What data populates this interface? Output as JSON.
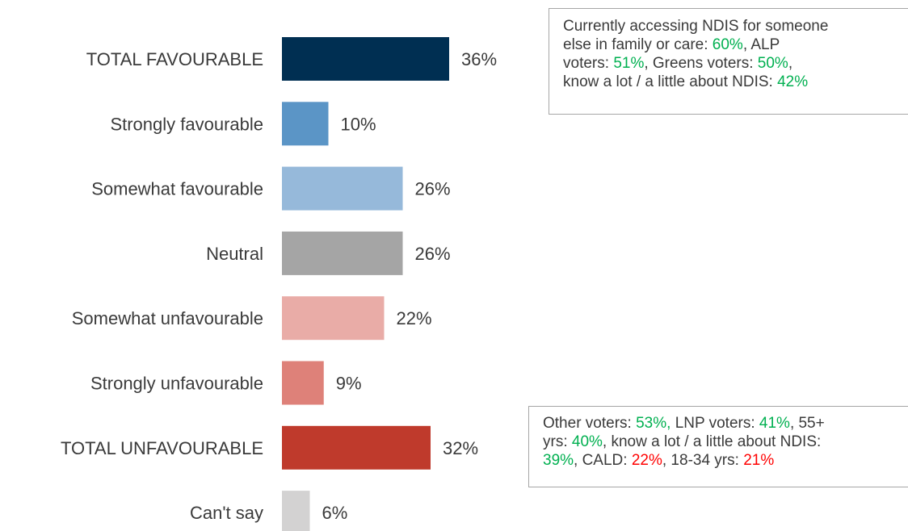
{
  "chart_data": {
    "type": "bar",
    "orientation": "horizontal",
    "categories": [
      "TOTAL FAVOURABLE",
      "Strongly favourable",
      "Somewhat favourable",
      "Neutral",
      "Somewhat unfavourable",
      "Strongly unfavourable",
      "TOTAL UNFAVOURABLE",
      "Can't say"
    ],
    "values": [
      36,
      10,
      26,
      26,
      22,
      9,
      32,
      6
    ],
    "value_labels": [
      "36%",
      "10%",
      "26%",
      "26%",
      "22%",
      "9%",
      "32%",
      "6%"
    ],
    "colors": [
      "#002f52",
      "#5b95c6",
      "#96b9da",
      "#a5a5a5",
      "#e9aca7",
      "#de8179",
      "#bf3a2c",
      "#d3d2d2"
    ],
    "xlim": [
      0,
      100
    ],
    "grid": false,
    "legend": "none",
    "title": "",
    "xlabel": "",
    "ylabel": ""
  },
  "callouts": {
    "favourable": {
      "lines": [
        [
          {
            "t": "Currently accessing NDIS for someone",
            "c": ""
          }
        ],
        [
          {
            "t": "else in family or care: ",
            "c": ""
          },
          {
            "t": "60%",
            "c": "g"
          },
          {
            "t": ", ALP",
            "c": ""
          }
        ],
        [
          {
            "t": "voters: ",
            "c": ""
          },
          {
            "t": "51%",
            "c": "g"
          },
          {
            "t": ", Greens voters: ",
            "c": ""
          },
          {
            "t": "50%",
            "c": "g"
          },
          {
            "t": ",",
            "c": ""
          }
        ],
        [
          {
            "t": "know a lot / a little about NDIS: ",
            "c": ""
          },
          {
            "t": "42%",
            "c": "g"
          }
        ]
      ]
    },
    "unfavourable": {
      "lines": [
        [
          {
            "t": "Other voters: ",
            "c": ""
          },
          {
            "t": "53%,",
            "c": "g"
          },
          {
            "t": " LNP voters: ",
            "c": ""
          },
          {
            "t": "41%",
            "c": "g"
          },
          {
            "t": ", 55+",
            "c": ""
          }
        ],
        [
          {
            "t": "yrs: ",
            "c": ""
          },
          {
            "t": "40%",
            "c": "g"
          },
          {
            "t": ", know a lot / a little about NDIS:",
            "c": ""
          }
        ],
        [
          {
            "t": "39%",
            "c": "g"
          },
          {
            "t": ", CALD: ",
            "c": ""
          },
          {
            "t": "22%",
            "c": "r"
          },
          {
            "t": ", 18-34 yrs: ",
            "c": ""
          },
          {
            "t": "21%",
            "c": "r"
          }
        ]
      ]
    },
    "highlight_colors": {
      "g": "#00b050",
      "r": "#ff0000"
    }
  }
}
